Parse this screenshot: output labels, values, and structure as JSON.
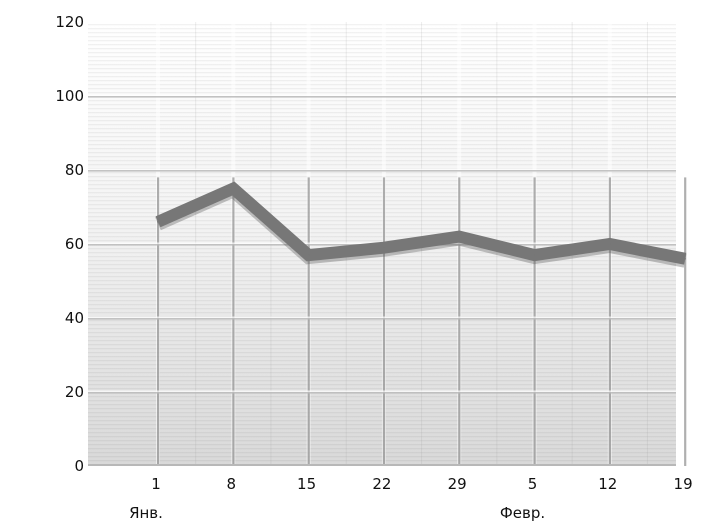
{
  "chart_data": {
    "type": "line",
    "title": "",
    "xlabel": "",
    "ylabel": "",
    "x": [
      "1",
      "8",
      "15",
      "22",
      "29",
      "5",
      "12",
      "19"
    ],
    "month_labels": [
      {
        "text": "Янв.",
        "at_category": 0
      },
      {
        "text": "Февр.",
        "at_category": 5
      }
    ],
    "series": [
      {
        "values": [
          66,
          75,
          57,
          59,
          62,
          57,
          60,
          56
        ]
      }
    ],
    "ylim": [
      0,
      120
    ],
    "yticks": [
      0,
      20,
      40,
      60,
      80,
      100,
      120
    ],
    "grid": true,
    "legend": "none",
    "line_color": "#777777",
    "line_shadow_color": "#555555"
  }
}
